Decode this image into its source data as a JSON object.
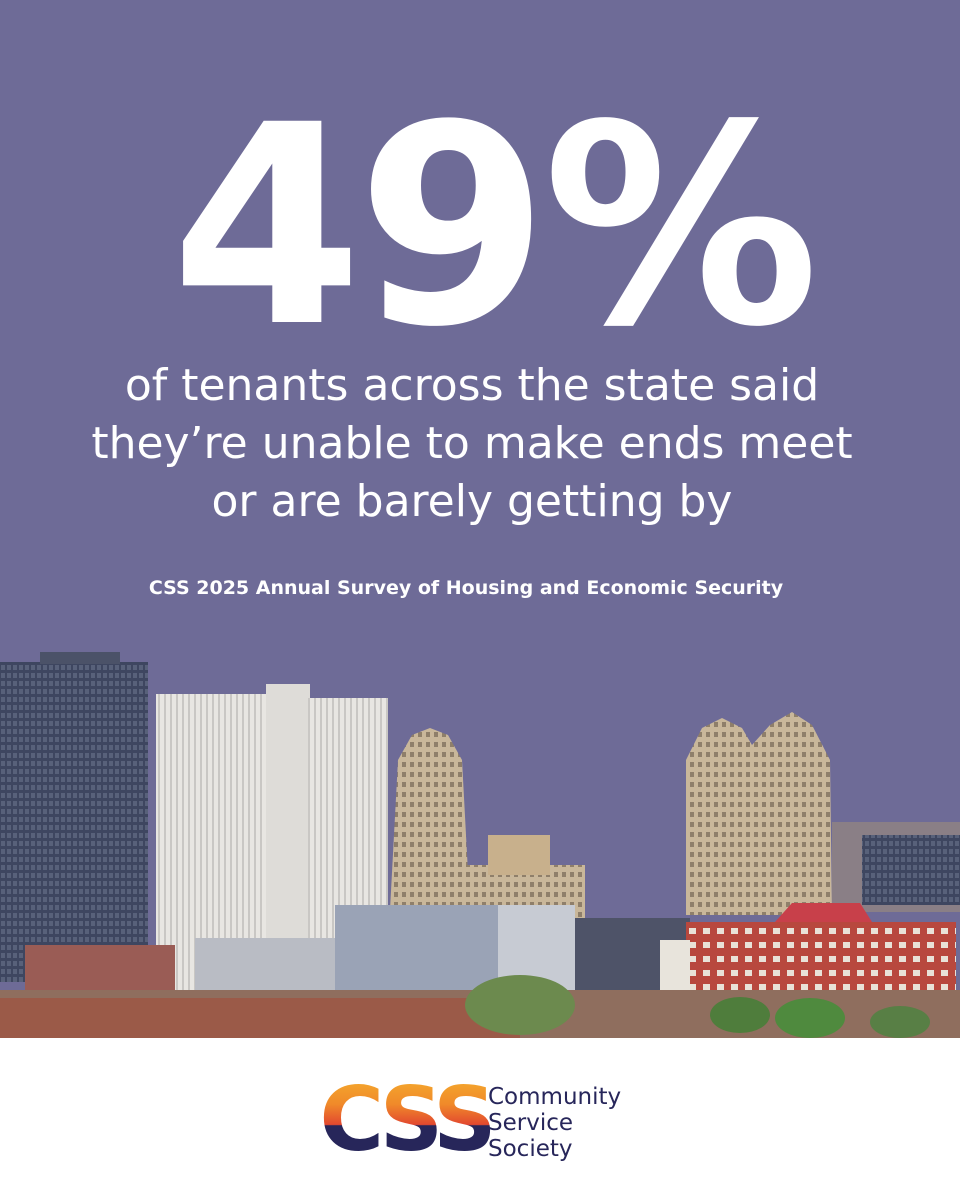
{
  "headline": "49%",
  "statement": {
    "lines": [
      "of tenants across the state said",
      "they’re unable to make ends meet",
      "or are barely getting by"
    ]
  },
  "source": "CSS 2025 Annual Survey of Housing and Economic Security",
  "logo": {
    "mark": "CSS",
    "name_lines": [
      "Community",
      "Service",
      "Society"
    ]
  }
}
